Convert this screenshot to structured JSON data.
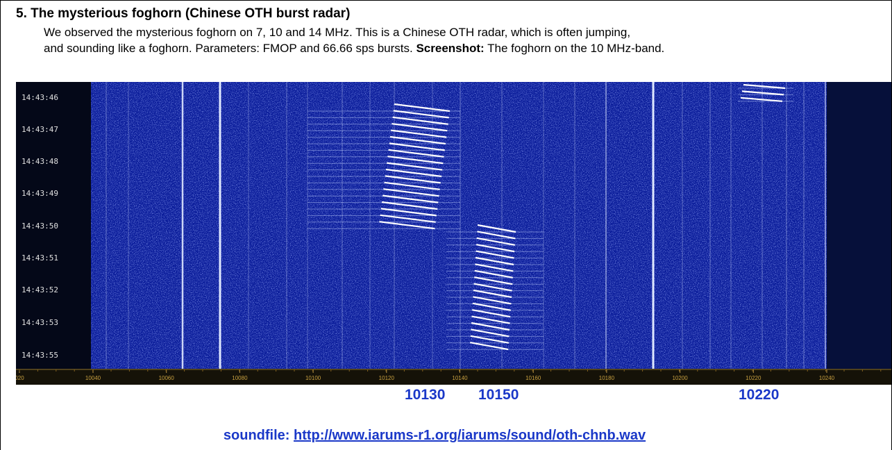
{
  "heading": "5.  The mysterious foghorn (Chinese OTH burst radar)",
  "paragraph": {
    "line_1": "We observed the mysterious foghorn on 7, 10 and 14 MHz. This is a Chinese OTH radar, which is often jumping,",
    "line_2": "and sounding like a foghorn. Parameters: FMOP and 66.66 sps bursts.",
    "bold": "Screenshot:",
    "line_2_end": "The foghorn on the 10 MHz-band."
  },
  "spectrogram": {
    "time_labels": [
      "14:43:46",
      "14:43:47",
      "14:43:48",
      "14:43:49",
      "14:43:50",
      "14:43:51",
      "14:43:52",
      "14:43:53",
      "14:43:55"
    ],
    "frequency_labels": [
      "020",
      "10040",
      "10060",
      "10080",
      "10100",
      "10120",
      "10140",
      "10160",
      "10180",
      "10200",
      "10220",
      "10240"
    ],
    "markers": [
      "10130",
      "10150",
      "10220"
    ]
  },
  "soundfile": {
    "label": "soundfile:",
    "url": "http://www.iarums-r1.org/iarums/sound/oth-chnb.wav"
  }
}
